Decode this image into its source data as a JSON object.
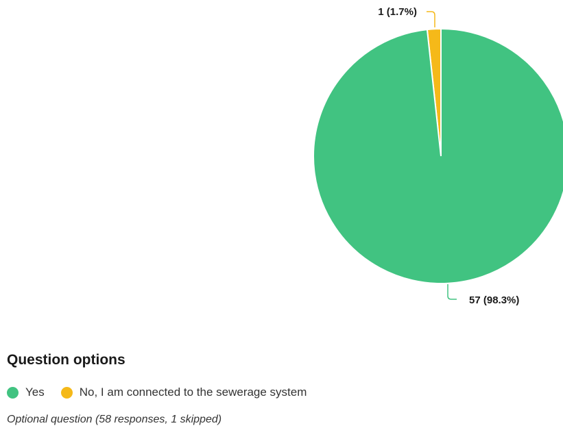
{
  "chart_data": {
    "type": "pie",
    "slices": [
      {
        "name": "Yes",
        "value": 57,
        "percent": 98.3,
        "label": "57 (98.3%)",
        "color": "#41c381"
      },
      {
        "name": "No, I am connected to the sewerage system",
        "value": 1,
        "percent": 1.7,
        "label": "1 (1.7%)",
        "color": "#f5b919"
      }
    ]
  },
  "legend": {
    "title": "Question options",
    "items": [
      {
        "label": "Yes",
        "color": "#41c381"
      },
      {
        "label": "No, I am connected to the sewerage system",
        "color": "#f5b919"
      }
    ]
  },
  "footnote": "Optional question (58 responses, 1 skipped)"
}
